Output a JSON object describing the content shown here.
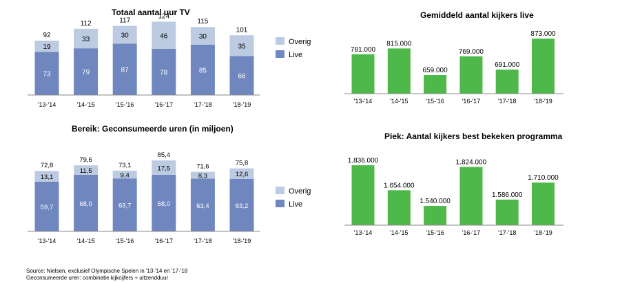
{
  "colors": {
    "live": "#6f86bf",
    "overig": "#bccbe1",
    "green": "#4fb84b",
    "axis": "#8a8a8a",
    "white": "#ffffff"
  },
  "source": {
    "line1": "Source: Nielsen, exclusief Olympische Spelen in '13-'14 en '17-'18",
    "line2": "Geconsumeerde uren: combinatie kijkcijfers + uitzendduur"
  },
  "chart_data": [
    {
      "id": "totaal",
      "type": "bar",
      "stacked": true,
      "title": "Totaal aantal uur TV",
      "categories": [
        "'13-'14",
        "'14-'15",
        "'15-'16",
        "'16-'17",
        "'17-'18",
        "'18-'19"
      ],
      "series": [
        {
          "name": "Live",
          "values": [
            "73",
            "79",
            "87",
            "78",
            "85",
            "66"
          ]
        },
        {
          "name": "Overig",
          "values": [
            "19",
            "33",
            "30",
            "46",
            "30",
            "35"
          ]
        }
      ],
      "totals": [
        "92",
        "112",
        "117",
        "124",
        "115",
        "101"
      ],
      "legend": "right"
    },
    {
      "id": "bereik",
      "type": "bar",
      "stacked": true,
      "title": "Bereik: Geconsumeerde uren (in miljoen)",
      "categories": [
        "'13-'14",
        "'14-'15",
        "'15-'16",
        "'16-'17",
        "'17-'18",
        "'18-'19"
      ],
      "series": [
        {
          "name": "Live",
          "values": [
            "59,7",
            "68,0",
            "63,7",
            "68,0",
            "63,4",
            "63,2"
          ]
        },
        {
          "name": "Overig",
          "values": [
            "13,1",
            "11,5",
            "9,4",
            "17,5",
            "8,3",
            "12,6"
          ]
        }
      ],
      "totals": [
        "72,8",
        "79,6",
        "73,1",
        "85,4",
        "71,6",
        "75,8"
      ],
      "legend": "right"
    },
    {
      "id": "gemiddeld",
      "type": "bar",
      "title": "Gemiddeld aantal kijkers live",
      "categories": [
        "'13-'14",
        "'14-'15",
        "'15-'16",
        "'16-'17",
        "'17-'18",
        "'18-'19"
      ],
      "values": [
        "781.000",
        "815.000",
        "659.000",
        "769.000",
        "691.000",
        "873.000"
      ]
    },
    {
      "id": "piek",
      "type": "bar",
      "title": "Piek: Aantal kijkers best bekeken programma",
      "categories": [
        "'13-'14",
        "'14-'15",
        "'15-'16",
        "'16-'17",
        "'17-'18",
        "'18-'19"
      ],
      "values": [
        "1.836.000",
        "1.654.000",
        "1.540.000",
        "1.824.000",
        "1.586.000",
        "1.710.000"
      ]
    }
  ]
}
